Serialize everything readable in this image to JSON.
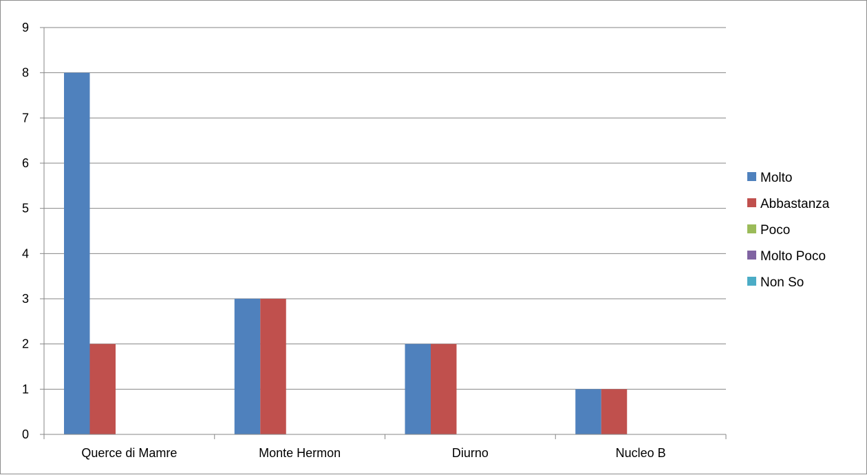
{
  "chart_data": {
    "type": "bar",
    "title": "",
    "xlabel": "",
    "ylabel": "",
    "categories": [
      "Querce di Mamre",
      "Monte Hermon",
      "Diurno",
      "Nucleo B"
    ],
    "series": [
      {
        "name": "Molto",
        "color": "#4f81bd",
        "values": [
          8,
          3,
          2,
          1
        ]
      },
      {
        "name": "Abbastanza",
        "color": "#c0504d",
        "values": [
          2,
          3,
          2,
          1
        ]
      },
      {
        "name": "Poco",
        "color": "#9bbb59",
        "values": [
          0,
          0,
          0,
          0
        ]
      },
      {
        "name": "Molto Poco",
        "color": "#8064a2",
        "values": [
          0,
          0,
          0,
          0
        ]
      },
      {
        "name": "Non So",
        "color": "#4bacc6",
        "values": [
          0,
          0,
          0,
          0
        ]
      }
    ],
    "ylim": [
      0,
      9
    ],
    "yticks": [
      "0",
      "1",
      "2",
      "3",
      "4",
      "5",
      "6",
      "7",
      "8",
      "9"
    ],
    "grid": true,
    "legend_position": "right",
    "gridline_color": "#868686"
  }
}
